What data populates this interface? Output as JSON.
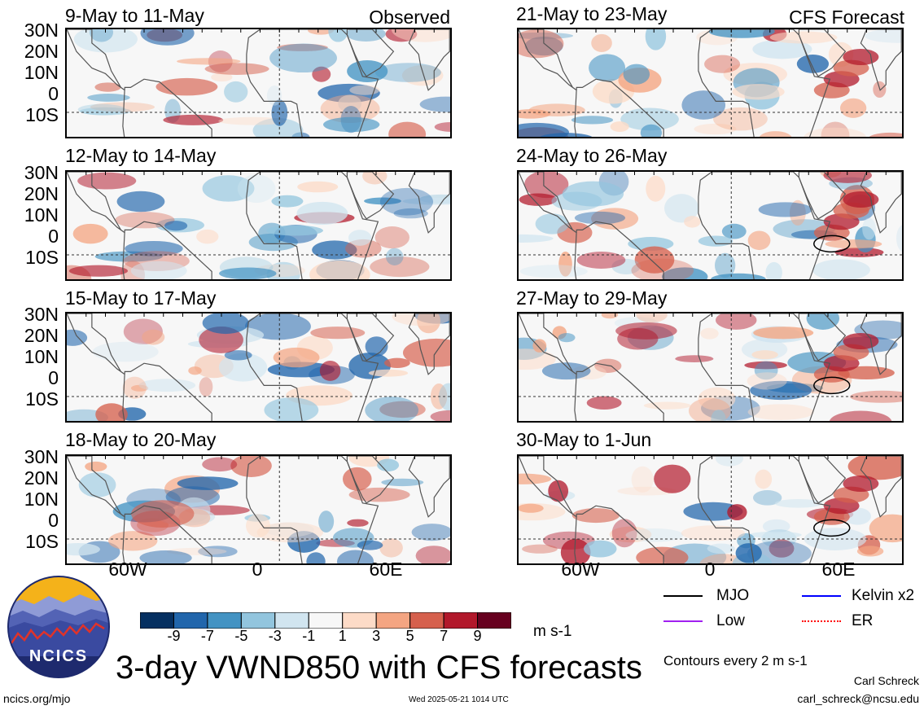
{
  "panels": [
    {
      "title": "9-May to 11-May",
      "tag": "Observed"
    },
    {
      "title": "12-May to 14-May",
      "tag": ""
    },
    {
      "title": "15-May to 17-May",
      "tag": ""
    },
    {
      "title": "18-May to 20-May",
      "tag": ""
    },
    {
      "title": "21-May to 23-May",
      "tag": "CFS Forecast"
    },
    {
      "title": "24-May to 26-May",
      "tag": ""
    },
    {
      "title": "27-May to 29-May",
      "tag": ""
    },
    {
      "title": "30-May to 1-Jun",
      "tag": ""
    }
  ],
  "lat_labels": [
    "30N",
    "20N",
    "10N",
    "0",
    "10S"
  ],
  "lon_labels": [
    "60W",
    "0",
    "60E"
  ],
  "colorbar": {
    "labels": [
      "-9",
      "-7",
      "-5",
      "-3",
      "-1",
      "1",
      "3",
      "5",
      "7",
      "9"
    ],
    "colors": [
      "#053061",
      "#2166ac",
      "#4393c3",
      "#92c5de",
      "#d1e5f0",
      "#f7f7f7",
      "#fddbc7",
      "#f4a582",
      "#d6604d",
      "#b2182b",
      "#67001f"
    ],
    "units": "m s-1"
  },
  "legend": {
    "items": [
      {
        "label": "MJO",
        "color": "#000000"
      },
      {
        "label": "Kelvin x2",
        "color": "#0000ff"
      },
      {
        "label": "Low",
        "color": "#a020f0"
      },
      {
        "label": "ER",
        "color": "#ff0000"
      }
    ],
    "contour_note": "Contours every 2 m s-1"
  },
  "title": "3-day VWND850 with CFS forecasts",
  "logo_text": "NCICS",
  "footer": {
    "left": "ncics.org/mjo",
    "center": "Wed 2025-05-21 1014 UTC",
    "author": "Carl Schreck",
    "email": "carl_schreck@ncsu.edu"
  }
}
